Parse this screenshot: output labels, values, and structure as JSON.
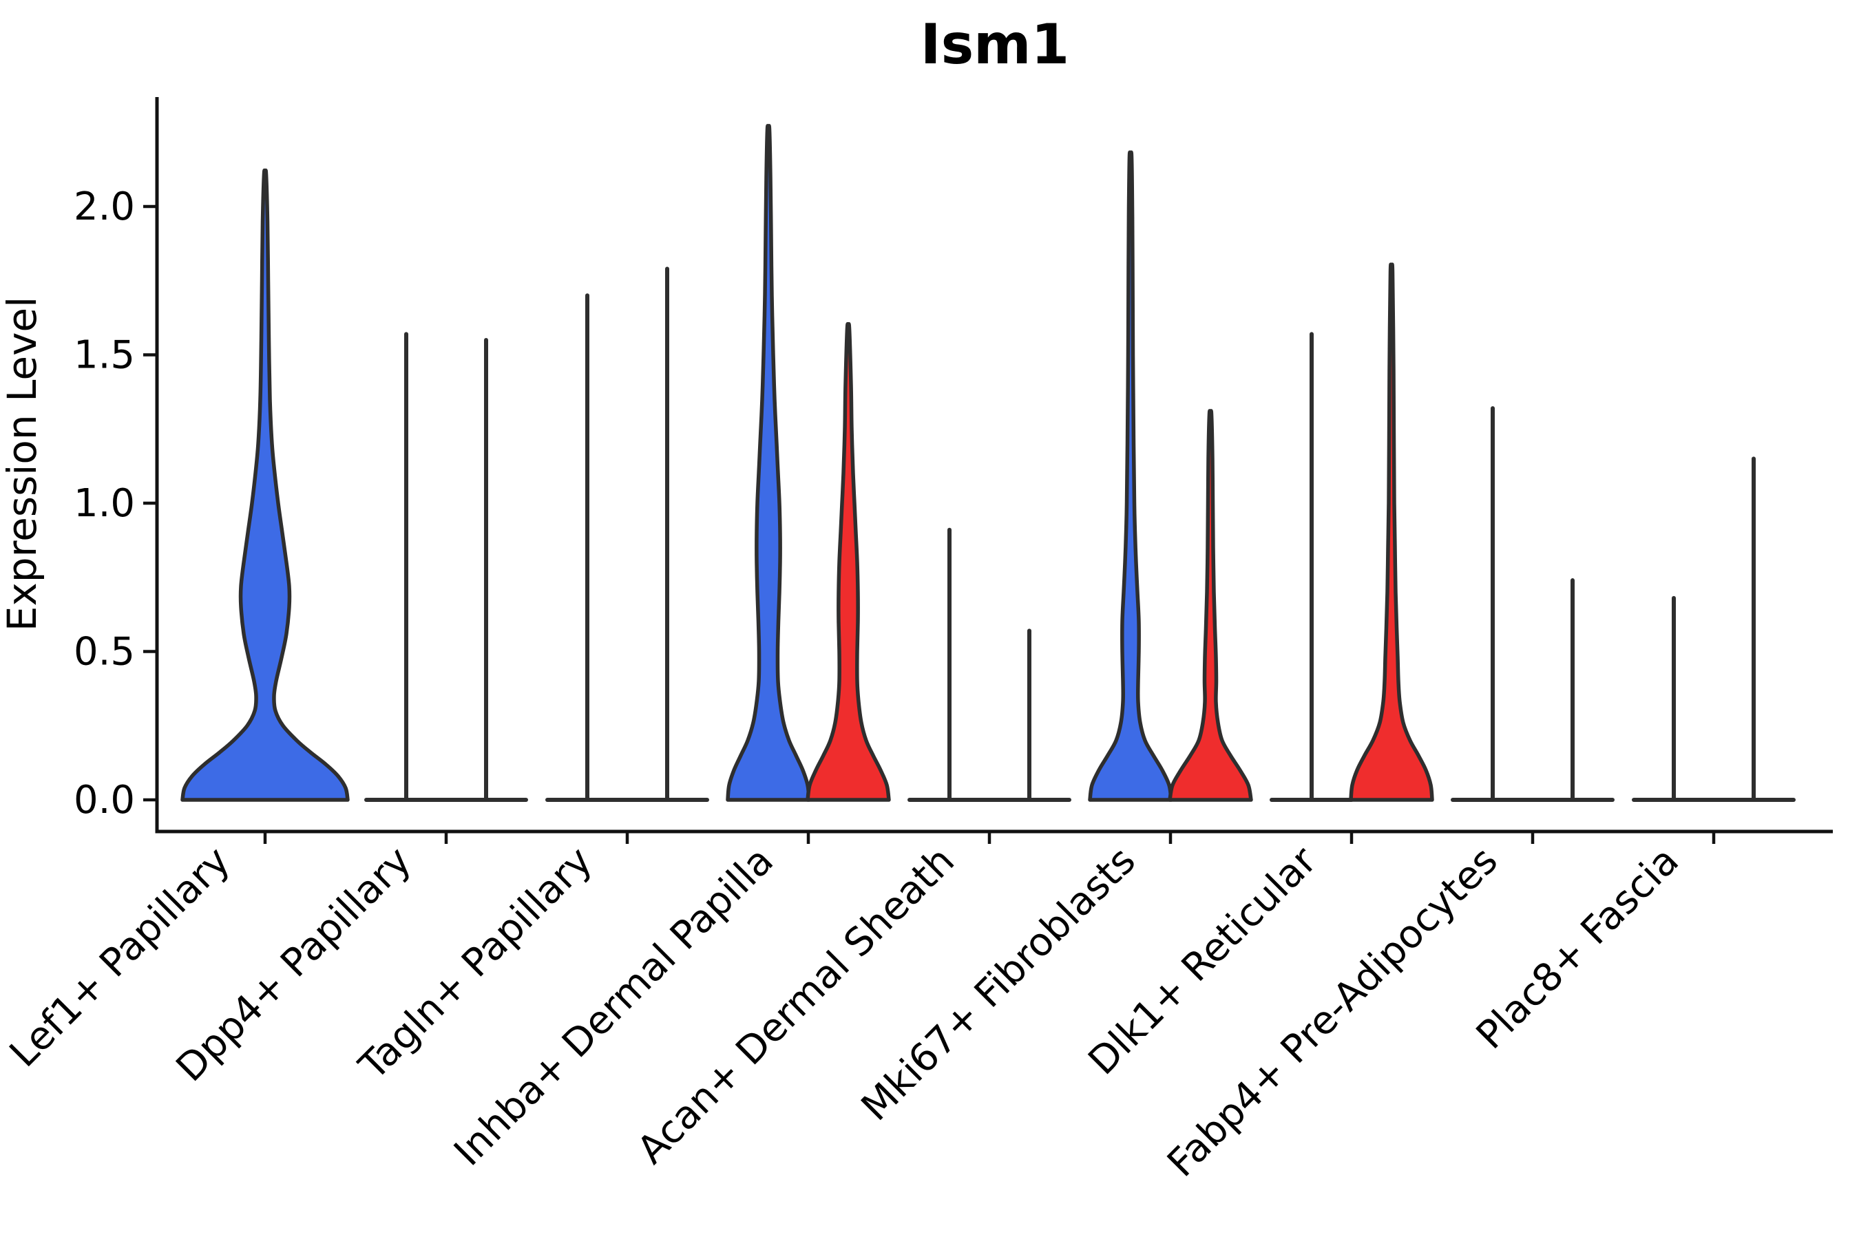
{
  "title": "Ism1",
  "axes": {
    "ylabel": "Expression Level",
    "yticks": [
      "0.0",
      "0.5",
      "1.0",
      "1.5",
      "2.0"
    ],
    "ytick_values": [
      0,
      0.5,
      1.0,
      1.5,
      2.0
    ]
  },
  "colors": {
    "group1_fill": "#3D6BE6",
    "group2_fill": "#EF2D2D",
    "violin_outline": "#2E2E2E",
    "axis": "#111111"
  },
  "chart_data": {
    "type": "violin",
    "title": "Ism1",
    "xlabel": "",
    "ylabel": "Expression Level",
    "ylim": [
      0,
      2.37
    ],
    "grid": false,
    "legend_position": "none",
    "categories": [
      "Lef1+ Papillary",
      "Dpp4+ Papillary",
      "Tagln+ Papillary",
      "Inhba+ Dermal Papilla",
      "Acan+ Dermal Sheath",
      "Mki67+ Fibroblasts",
      "Dlk1+ Reticular",
      "Fabp4+ Pre-Adipocytes",
      "Plac8+ Fascia"
    ],
    "series": [
      {
        "name": "group1-blue",
        "color": "#3D6BE6",
        "max_expression": [
          2.11,
          1.57,
          1.7,
          2.26,
          0.91,
          2.17,
          1.57,
          1.32,
          0.68
        ]
      },
      {
        "name": "group2-red",
        "color": "#EF2D2D",
        "max_expression": [
          null,
          1.55,
          1.79,
          1.59,
          0.57,
          1.3,
          1.78,
          0.74,
          1.15
        ]
      }
    ],
    "spike_base_halfwidth": 58,
    "violins": [
      {
        "cat": 0,
        "group": "group1",
        "kind": "density",
        "offset": 0,
        "tip": 2.11,
        "profile": [
          [
            0,
            120
          ],
          [
            0.04,
            117
          ],
          [
            0.08,
            106
          ],
          [
            0.12,
            88
          ],
          [
            0.16,
            66
          ],
          [
            0.2,
            46
          ],
          [
            0.25,
            26
          ],
          [
            0.3,
            15
          ],
          [
            0.35,
            13
          ],
          [
            0.4,
            16
          ],
          [
            0.48,
            24
          ],
          [
            0.56,
            31
          ],
          [
            0.65,
            35
          ],
          [
            0.72,
            35
          ],
          [
            0.8,
            31
          ],
          [
            0.9,
            25
          ],
          [
            1.0,
            19
          ],
          [
            1.1,
            14
          ],
          [
            1.2,
            10
          ],
          [
            1.35,
            7
          ],
          [
            1.55,
            5.5
          ],
          [
            1.75,
            4.5
          ],
          [
            1.95,
            3.5
          ],
          [
            2.11,
            1.5
          ]
        ]
      },
      {
        "cat": 1,
        "group": "group1",
        "kind": "spike",
        "offset": -58,
        "tip": 1.57
      },
      {
        "cat": 1,
        "group": "group2",
        "kind": "spike",
        "offset": 58,
        "tip": 1.55
      },
      {
        "cat": 2,
        "group": "group1",
        "kind": "spike",
        "offset": -58,
        "tip": 1.7
      },
      {
        "cat": 2,
        "group": "group2",
        "kind": "spike",
        "offset": 58,
        "tip": 1.79
      },
      {
        "cat": 3,
        "group": "group1",
        "kind": "density",
        "offset": -58,
        "tip": 2.26,
        "profile": [
          [
            0,
            59
          ],
          [
            0.05,
            57
          ],
          [
            0.1,
            50
          ],
          [
            0.15,
            40
          ],
          [
            0.2,
            30
          ],
          [
            0.26,
            22
          ],
          [
            0.33,
            17
          ],
          [
            0.4,
            14
          ],
          [
            0.5,
            13.5
          ],
          [
            0.6,
            14.5
          ],
          [
            0.7,
            16
          ],
          [
            0.8,
            17
          ],
          [
            0.9,
            17
          ],
          [
            1.0,
            16
          ],
          [
            1.1,
            14
          ],
          [
            1.2,
            12
          ],
          [
            1.35,
            9
          ],
          [
            1.5,
            7
          ],
          [
            1.7,
            5
          ],
          [
            1.9,
            4
          ],
          [
            2.1,
            3
          ],
          [
            2.26,
            1.5
          ]
        ]
      },
      {
        "cat": 3,
        "group": "group2",
        "kind": "density",
        "offset": 58,
        "tip": 1.59,
        "profile": [
          [
            0,
            59
          ],
          [
            0.05,
            56
          ],
          [
            0.1,
            47
          ],
          [
            0.15,
            36
          ],
          [
            0.2,
            26
          ],
          [
            0.26,
            19
          ],
          [
            0.33,
            15
          ],
          [
            0.4,
            13
          ],
          [
            0.5,
            13
          ],
          [
            0.6,
            14
          ],
          [
            0.7,
            14
          ],
          [
            0.8,
            13
          ],
          [
            0.9,
            11
          ],
          [
            1.0,
            9
          ],
          [
            1.1,
            7
          ],
          [
            1.25,
            5
          ],
          [
            1.4,
            4
          ],
          [
            1.59,
            1.5
          ]
        ]
      },
      {
        "cat": 4,
        "group": "group1",
        "kind": "spike",
        "offset": -58,
        "tip": 0.91
      },
      {
        "cat": 4,
        "group": "group2",
        "kind": "spike",
        "offset": 58,
        "tip": 0.57
      },
      {
        "cat": 5,
        "group": "group1",
        "kind": "density",
        "offset": -58,
        "tip": 2.17,
        "profile": [
          [
            0,
            59
          ],
          [
            0.05,
            56
          ],
          [
            0.1,
            46
          ],
          [
            0.15,
            33
          ],
          [
            0.2,
            21
          ],
          [
            0.26,
            14
          ],
          [
            0.33,
            11
          ],
          [
            0.4,
            11
          ],
          [
            0.5,
            12
          ],
          [
            0.6,
            12
          ],
          [
            0.7,
            10
          ],
          [
            0.8,
            8
          ],
          [
            0.9,
            6.5
          ],
          [
            1.0,
            5.5
          ],
          [
            1.2,
            4.5
          ],
          [
            1.5,
            3.5
          ],
          [
            1.8,
            3
          ],
          [
            2.0,
            2.5
          ],
          [
            2.17,
            1.5
          ]
        ]
      },
      {
        "cat": 5,
        "group": "group2",
        "kind": "density",
        "offset": 58,
        "tip": 1.3,
        "profile": [
          [
            0,
            59
          ],
          [
            0.05,
            55
          ],
          [
            0.1,
            43
          ],
          [
            0.15,
            29
          ],
          [
            0.2,
            17
          ],
          [
            0.26,
            11
          ],
          [
            0.33,
            8
          ],
          [
            0.4,
            8.5
          ],
          [
            0.48,
            8
          ],
          [
            0.58,
            6.5
          ],
          [
            0.7,
            5
          ],
          [
            0.85,
            4
          ],
          [
            1.0,
            3.5
          ],
          [
            1.15,
            3
          ],
          [
            1.3,
            1.5
          ]
        ]
      },
      {
        "cat": 6,
        "group": "group1",
        "kind": "spike",
        "offset": -58,
        "tip": 1.57
      },
      {
        "cat": 6,
        "group": "group2",
        "kind": "density",
        "offset": 58,
        "tip": 1.78,
        "profile": [
          [
            0,
            59
          ],
          [
            0.05,
            57
          ],
          [
            0.1,
            50
          ],
          [
            0.15,
            39
          ],
          [
            0.2,
            27
          ],
          [
            0.26,
            17
          ],
          [
            0.33,
            12
          ],
          [
            0.4,
            10
          ],
          [
            0.48,
            9
          ],
          [
            0.58,
            7.5
          ],
          [
            0.7,
            6
          ],
          [
            0.85,
            5
          ],
          [
            1.0,
            4
          ],
          [
            1.2,
            3.5
          ],
          [
            1.45,
            3
          ],
          [
            1.78,
            1.5
          ]
        ]
      },
      {
        "cat": 7,
        "group": "group1",
        "kind": "spike",
        "offset": -58,
        "tip": 1.32
      },
      {
        "cat": 7,
        "group": "group2",
        "kind": "spike",
        "offset": 58,
        "tip": 0.74
      },
      {
        "cat": 8,
        "group": "group1",
        "kind": "spike",
        "offset": -58,
        "tip": 0.68
      },
      {
        "cat": 8,
        "group": "group2",
        "kind": "spike",
        "offset": 58,
        "tip": 1.15
      }
    ]
  }
}
